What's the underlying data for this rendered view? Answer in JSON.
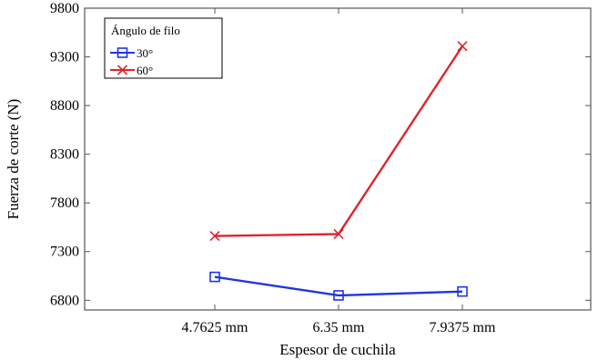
{
  "chart_data": {
    "type": "line",
    "categories": [
      "4.7625 mm",
      "6.35 mm",
      "7.9375 mm"
    ],
    "series": [
      {
        "name": "30°",
        "values": [
          7040,
          6850,
          6890
        ],
        "color": "#1f35e6",
        "marker": "square"
      },
      {
        "name": "60°",
        "values": [
          7460,
          7480,
          9410
        ],
        "color": "#e0242b",
        "marker": "x"
      }
    ],
    "xlabel": "Espesor de cuchila",
    "ylabel": "Fuerza de corte (N)",
    "ylim": [
      6700,
      9800
    ],
    "yticks": [
      6800,
      7300,
      7800,
      8300,
      8800,
      9300,
      9800
    ],
    "grid": false,
    "legend": {
      "title": "Ángulo de filo",
      "position": "top-left"
    }
  }
}
